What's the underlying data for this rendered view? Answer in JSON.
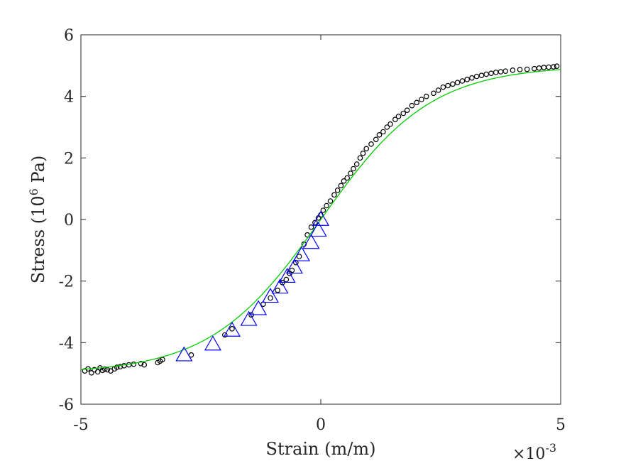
{
  "chart_data": {
    "type": "scatter",
    "xlabel": "Strain (m/m)",
    "ylabel_text": "Stress (10",
    "ylabel_sup": "6",
    "ylabel_unit": " Pa)",
    "x_exponent_prefix": "×10",
    "x_exponent_sup": "-3",
    "xlim": [
      -5,
      5
    ],
    "ylim": [
      -6,
      6
    ],
    "x_ticks": [
      -5,
      0,
      5
    ],
    "x_tick_labels": [
      "-5",
      "0",
      "5"
    ],
    "y_ticks": [
      -6,
      -4,
      -2,
      0,
      2,
      4,
      6
    ],
    "y_tick_labels": [
      "-6",
      "-4",
      "-2",
      "0",
      "2",
      "4",
      "6"
    ],
    "grid": false,
    "colors": {
      "fit_line": "#00cc00",
      "points_edge": "#000000",
      "triangles": "#0000ff"
    },
    "series": [
      {
        "kind": "scatter-circle",
        "x": [
          -4.92,
          -4.85,
          -4.78,
          -4.72,
          -4.65,
          -4.6,
          -4.55,
          -4.5,
          -4.45,
          -4.38,
          -4.3,
          -4.25,
          -4.18,
          -4.1,
          -4.0,
          -3.9,
          -3.75,
          -3.68,
          -3.4,
          -3.35,
          -3.3,
          -2.7,
          -2.0,
          -1.85,
          -1.45,
          -1.2,
          -1.05,
          -0.9,
          -0.8,
          -0.72,
          -0.65,
          -0.6,
          -0.52,
          -0.45,
          -0.35,
          -0.28,
          -0.2,
          -0.12,
          -0.05,
          0.0,
          0.05,
          0.12,
          0.2,
          0.28,
          0.35,
          0.42,
          0.48,
          0.55,
          0.62,
          0.68,
          0.75,
          0.82,
          0.88,
          0.95,
          1.05,
          1.15,
          1.22,
          1.3,
          1.38,
          1.45,
          1.55,
          1.62,
          1.72,
          1.8,
          1.9,
          2.0,
          2.1,
          2.2,
          2.35,
          2.45,
          2.55,
          2.65,
          2.75,
          2.85,
          2.95,
          3.05,
          3.15,
          3.25,
          3.35,
          3.45,
          3.55,
          3.65,
          3.75,
          3.85,
          4.0,
          4.15,
          4.3,
          4.45,
          4.55,
          4.65,
          4.75,
          4.85,
          4.92
        ],
        "y": [
          -4.92,
          -4.85,
          -4.98,
          -4.88,
          -4.95,
          -4.82,
          -4.9,
          -4.86,
          -4.88,
          -4.92,
          -4.85,
          -4.8,
          -4.78,
          -4.75,
          -4.72,
          -4.7,
          -4.68,
          -4.72,
          -4.65,
          -4.6,
          -4.55,
          -4.4,
          -3.75,
          -3.55,
          -3.1,
          -2.75,
          -2.55,
          -2.3,
          -2.05,
          -1.95,
          -1.75,
          -1.65,
          -1.4,
          -1.2,
          -0.8,
          -0.5,
          -0.25,
          -0.1,
          0.05,
          0.15,
          0.3,
          0.45,
          0.6,
          0.8,
          0.95,
          1.1,
          1.25,
          1.35,
          1.5,
          1.65,
          1.8,
          2.0,
          2.15,
          2.3,
          2.45,
          2.6,
          2.75,
          2.85,
          3.0,
          3.1,
          3.25,
          3.35,
          3.45,
          3.55,
          3.7,
          3.8,
          3.9,
          4.0,
          4.1,
          4.2,
          4.3,
          4.35,
          4.4,
          4.45,
          4.5,
          4.55,
          4.6,
          4.65,
          4.68,
          4.72,
          4.75,
          4.78,
          4.8,
          4.82,
          4.85,
          4.87,
          4.88,
          4.9,
          4.92,
          4.94,
          4.95,
          4.96,
          4.98
        ]
      },
      {
        "kind": "scatter-triangle",
        "x": [
          -2.85,
          -2.25,
          -1.85,
          -1.5,
          -1.3,
          -1.05,
          -0.85,
          -0.7,
          -0.55,
          -0.4,
          -0.2,
          -0.05,
          0.0
        ],
        "y": [
          -4.4,
          -4.05,
          -3.6,
          -3.25,
          -2.9,
          -2.5,
          -2.2,
          -1.85,
          -1.55,
          -1.15,
          -0.75,
          -0.35,
          0.0
        ]
      },
      {
        "kind": "fit-line",
        "amplitude": 5.0,
        "scale": 2.3
      }
    ]
  }
}
